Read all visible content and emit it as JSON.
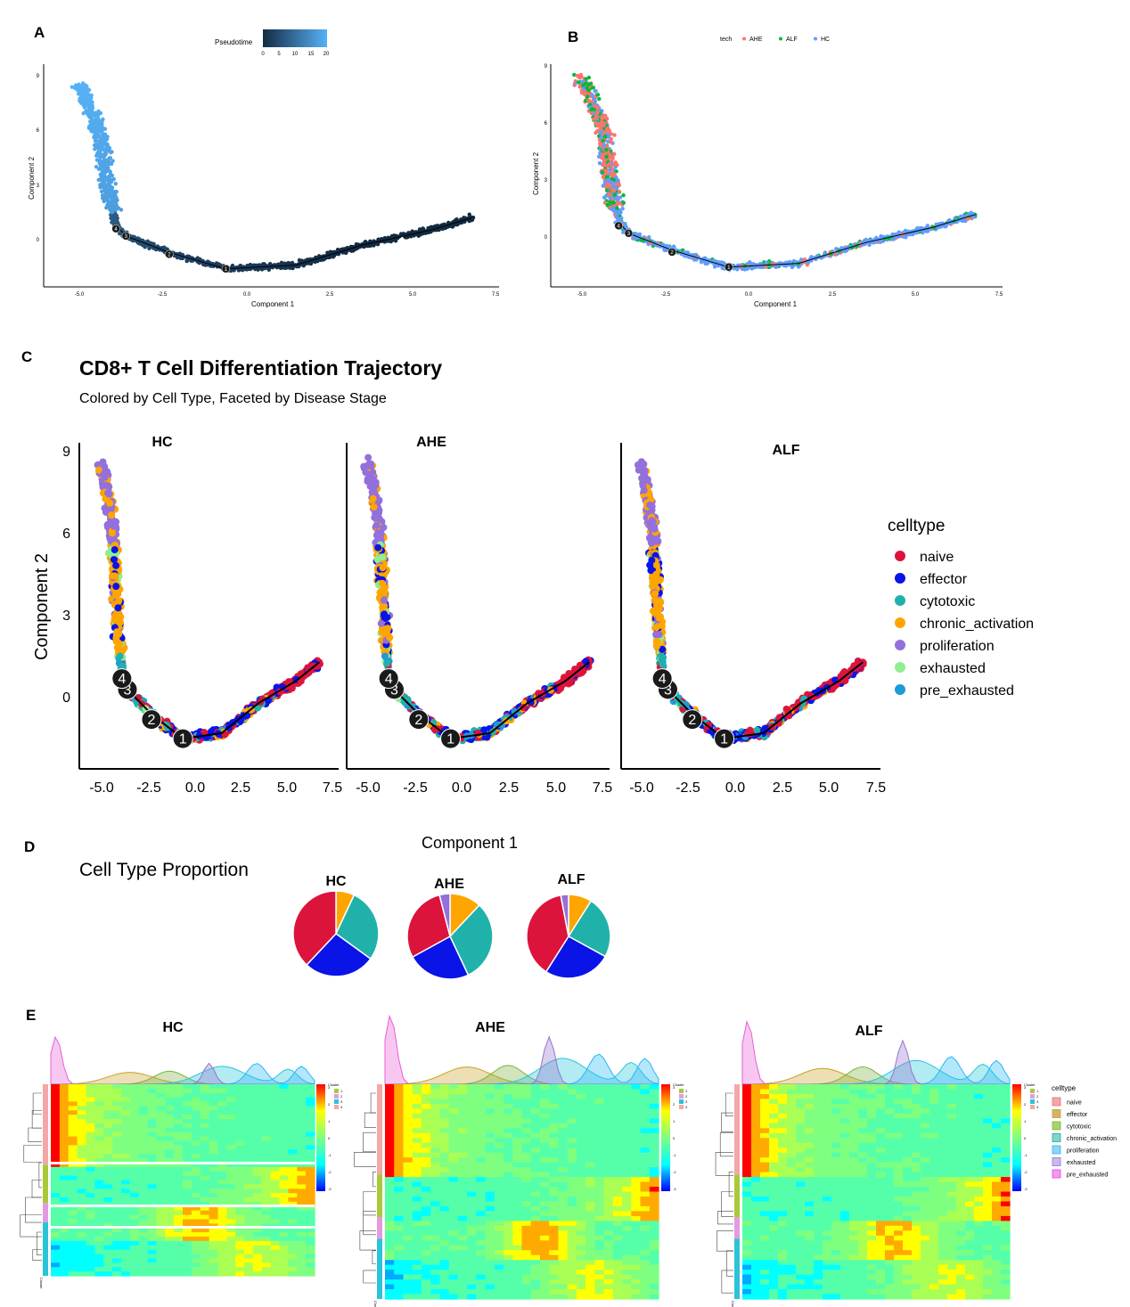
{
  "panel_labels": {
    "a": "A",
    "b": "B",
    "c": "C",
    "d": "D",
    "e": "E"
  },
  "colors": {
    "naive": "#dc143c",
    "effector": "#0a14e6",
    "cytotoxic": "#20b2aa",
    "chronic_activation": "#ffa500",
    "proliferation": "#9370db",
    "exhausted": "#90ee90",
    "pre_exhausted": "#1e9bd7",
    "AHE": "#f8766d",
    "ALF": "#00ba38",
    "HC": "#619cff",
    "pt_dark": "#132b43",
    "pt_light": "#56b1f7"
  },
  "panel_a": {
    "legend_title": "Pseudotime",
    "legend_ticks": [
      "0",
      "5",
      "10",
      "15",
      "20"
    ],
    "xlabel": "Component 1",
    "ylabel": "Component 2",
    "xticks": [
      "-5.0",
      "-2.5",
      "0.0",
      "2.5",
      "5.0",
      "7.5"
    ],
    "yticks": [
      "0",
      "3",
      "6",
      "9"
    ]
  },
  "panel_b": {
    "legend_title": "tech",
    "legend_items": [
      "AHE",
      "ALF",
      "HC"
    ],
    "xlabel": "Component 1",
    "ylabel": "Component 2",
    "xticks": [
      "-5.0",
      "-2.5",
      "0.0",
      "2.5",
      "5.0",
      "7.5"
    ],
    "yticks": [
      "0",
      "3",
      "6",
      "9"
    ]
  },
  "panel_c": {
    "title": "CD8+ T Cell Differentiation Trajectory",
    "subtitle": "Colored by Cell Type, Faceted by Disease Stage",
    "facets": [
      "HC",
      "AHE",
      "ALF"
    ],
    "xlabel": "Component 1",
    "ylabel": "Component 2",
    "xticks": [
      "-5.0",
      "-2.5",
      "0.0",
      "2.5",
      "5.0",
      "7.5"
    ],
    "yticks": [
      "0",
      "3",
      "6",
      "9"
    ],
    "legend_title": "celltype",
    "legend_items": [
      "naive",
      "effector",
      "cytotoxic",
      "chronic_activation",
      "proliferation",
      "exhausted",
      "pre_exhausted"
    ]
  },
  "panel_d": {
    "title": "Cell Type Proportion",
    "pies": [
      {
        "label": "HC"
      },
      {
        "label": "AHE"
      },
      {
        "label": "ALF"
      }
    ]
  },
  "panel_e": {
    "facets": [
      "HC",
      "AHE",
      "ALF"
    ],
    "cluster_title": "Cluster",
    "cluster_items": [
      "1",
      "2",
      "3",
      "4"
    ],
    "scale_ticks": [
      "3",
      "2",
      "1",
      "0",
      "-1",
      "-2",
      "-3"
    ],
    "row_annotation_label": "Cluster",
    "legend_title": "celltype",
    "legend_items": [
      "naive",
      "effector",
      "cytotoxic",
      "chronic_activation",
      "proliferation",
      "exhausted",
      "pre_exhausted"
    ]
  },
  "chart_data": [
    {
      "type": "scatter",
      "title": "",
      "xlabel": "Component 1",
      "ylabel": "Component 2",
      "xlim": [
        -5.5,
        7.5
      ],
      "ylim": [
        -2.5,
        9
      ],
      "color_by": "Pseudotime",
      "color_range": [
        0,
        20
      ],
      "trajectory": [
        [
          -5.0,
          8.5
        ],
        [
          -4.4,
          6.0
        ],
        [
          -4.1,
          2.5
        ],
        [
          -3.9,
          0.8
        ],
        [
          -3.6,
          0.2
        ],
        [
          -2.3,
          -0.7
        ],
        [
          -0.6,
          -1.6
        ],
        [
          1.5,
          -1.4
        ],
        [
          3.5,
          -0.3
        ],
        [
          5.5,
          0.5
        ],
        [
          6.8,
          1.2
        ]
      ],
      "branch_points": [
        {
          "label": "1",
          "x": -0.6,
          "y": -1.6
        },
        {
          "label": "2",
          "x": -2.3,
          "y": -0.8
        },
        {
          "label": "3",
          "x": -3.6,
          "y": 0.2
        },
        {
          "label": "4",
          "x": -3.9,
          "y": 0.6
        }
      ]
    },
    {
      "type": "scatter",
      "title": "",
      "xlabel": "Component 1",
      "ylabel": "Component 2",
      "xlim": [
        -5.5,
        7.5
      ],
      "ylim": [
        -2.5,
        9
      ],
      "series": [
        {
          "name": "AHE"
        },
        {
          "name": "ALF"
        },
        {
          "name": "HC"
        }
      ],
      "branch_points": [
        {
          "label": "1",
          "x": -0.6,
          "y": -1.6
        },
        {
          "label": "2",
          "x": -2.3,
          "y": -0.8
        },
        {
          "label": "3",
          "x": -3.6,
          "y": 0.2
        },
        {
          "label": "4",
          "x": -3.9,
          "y": 0.6
        }
      ]
    },
    {
      "type": "scatter",
      "title": "CD8+ T Cell Differentiation Trajectory",
      "subtitle": "Colored by Cell Type, Faceted by Disease Stage",
      "xlabel": "Component 1",
      "ylabel": "Component 2",
      "xlim": [
        -5.5,
        7.5
      ],
      "ylim": [
        -2.5,
        9.5
      ],
      "facets": [
        "HC",
        "AHE",
        "ALF"
      ],
      "series": [
        {
          "name": "naive"
        },
        {
          "name": "effector"
        },
        {
          "name": "cytotoxic"
        },
        {
          "name": "chronic_activation"
        },
        {
          "name": "proliferation"
        },
        {
          "name": "exhausted"
        },
        {
          "name": "pre_exhausted"
        }
      ],
      "branch_points": [
        {
          "label": "1",
          "x": -0.6,
          "y": -1.6
        },
        {
          "label": "2",
          "x": -2.3,
          "y": -0.9
        },
        {
          "label": "3",
          "x": -3.6,
          "y": 0.2
        },
        {
          "label": "4",
          "x": -3.9,
          "y": 0.6
        }
      ]
    },
    {
      "type": "pie",
      "title": "Cell Type Proportion",
      "categories": [
        "naive",
        "effector",
        "cytotoxic",
        "chronic_activation",
        "proliferation"
      ],
      "series": [
        {
          "name": "HC",
          "values": [
            38,
            27,
            28,
            7,
            0
          ]
        },
        {
          "name": "AHE",
          "values": [
            29,
            24,
            31,
            12,
            4
          ]
        },
        {
          "name": "ALF",
          "values": [
            38,
            26,
            24,
            9,
            3
          ]
        }
      ]
    },
    {
      "type": "heatmap",
      "facets": [
        "HC",
        "AHE",
        "ALF"
      ],
      "value_range": [
        -3,
        3
      ],
      "clusters": [
        "1",
        "2",
        "3",
        "4"
      ]
    }
  ]
}
